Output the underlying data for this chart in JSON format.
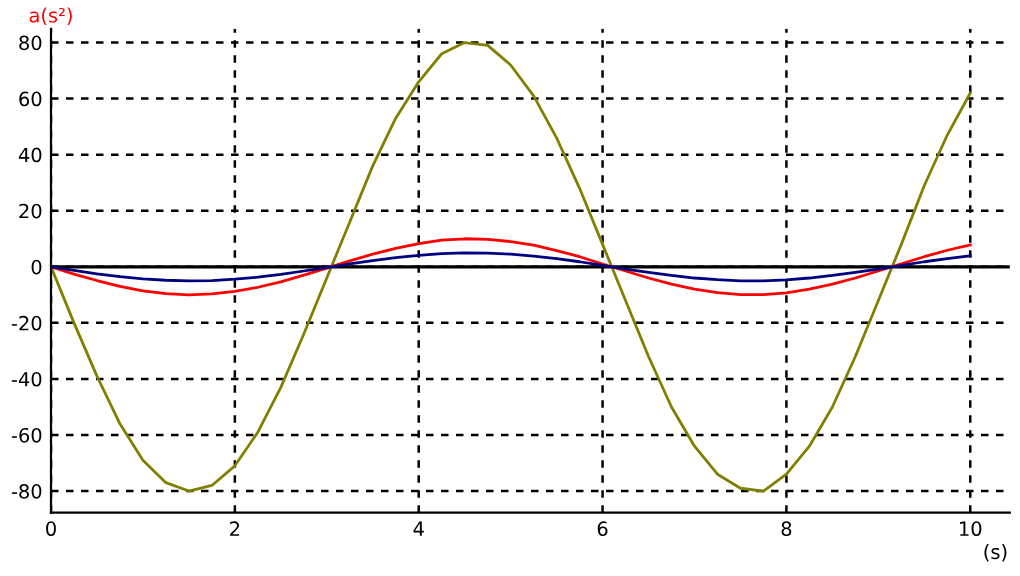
{
  "chart_data": {
    "type": "line",
    "xlabel": "(s)",
    "ylabel": "a(s²)",
    "x": [
      0,
      0.25,
      0.5,
      0.75,
      1,
      1.25,
      1.5,
      1.75,
      2,
      2.25,
      2.5,
      2.75,
      3,
      3.25,
      3.5,
      3.75,
      4,
      4.25,
      4.5,
      4.75,
      5,
      5.25,
      5.5,
      5.75,
      6,
      6.25,
      6.5,
      6.75,
      7,
      7.25,
      7.5,
      7.75,
      8,
      8.25,
      8.5,
      8.75,
      9,
      9.25,
      9.5,
      9.75,
      10
    ],
    "series": [
      {
        "color": "#808000",
        "values": [
          0,
          -20,
          -39,
          -56,
          -69,
          -77,
          -80,
          -78,
          -71,
          -59,
          -43,
          -24,
          -4,
          16,
          36,
          53,
          66,
          76,
          80,
          79,
          72,
          61,
          46,
          28,
          8,
          -12,
          -32,
          -50,
          -64,
          -74,
          -79,
          -80,
          -74,
          -64,
          -50,
          -32,
          -12,
          8,
          29,
          47,
          62
        ]
      },
      {
        "color": "#ff0000",
        "values": [
          0,
          -2.6,
          -4.9,
          -7.0,
          -8.6,
          -9.6,
          -10,
          -9.7,
          -8.8,
          -7.3,
          -5.4,
          -3.0,
          -0.5,
          2.1,
          4.5,
          6.6,
          8.3,
          9.5,
          10,
          9.8,
          9.0,
          7.7,
          5.8,
          3.6,
          1.0,
          -1.5,
          -4.0,
          -6.2,
          -8.0,
          -9.2,
          -9.9,
          -9.9,
          -9.3,
          -8.0,
          -6.2,
          -4.0,
          -1.5,
          1.1,
          3.6,
          5.9,
          7.8
        ]
      },
      {
        "color": "#000080",
        "values": [
          0,
          -1.3,
          -2.5,
          -3.5,
          -4.3,
          -4.8,
          -5,
          -4.9,
          -4.4,
          -3.7,
          -2.7,
          -1.5,
          -0.3,
          1.0,
          2.2,
          3.3,
          4.1,
          4.7,
          5,
          4.9,
          4.5,
          3.8,
          2.9,
          1.8,
          0.5,
          -0.8,
          -2.0,
          -3.1,
          -4.0,
          -4.6,
          -5.0,
          -5.0,
          -4.7,
          -4.0,
          -3.1,
          -2.0,
          -0.8,
          0.5,
          1.8,
          2.9,
          3.9
        ]
      }
    ],
    "xlim": [
      0,
      10.43
    ],
    "ylim": [
      -87.7,
      84.9
    ],
    "xticks": [
      0,
      2,
      4,
      6,
      8,
      10
    ],
    "yticks": [
      -80,
      -60,
      -40,
      -20,
      0,
      20,
      40,
      60,
      80
    ],
    "grid": true,
    "marker": "none",
    "line_style": "solid",
    "ref_lines": [
      {
        "axis": "y",
        "value": 0,
        "color": "#000000",
        "line_style": "solid"
      }
    ]
  }
}
